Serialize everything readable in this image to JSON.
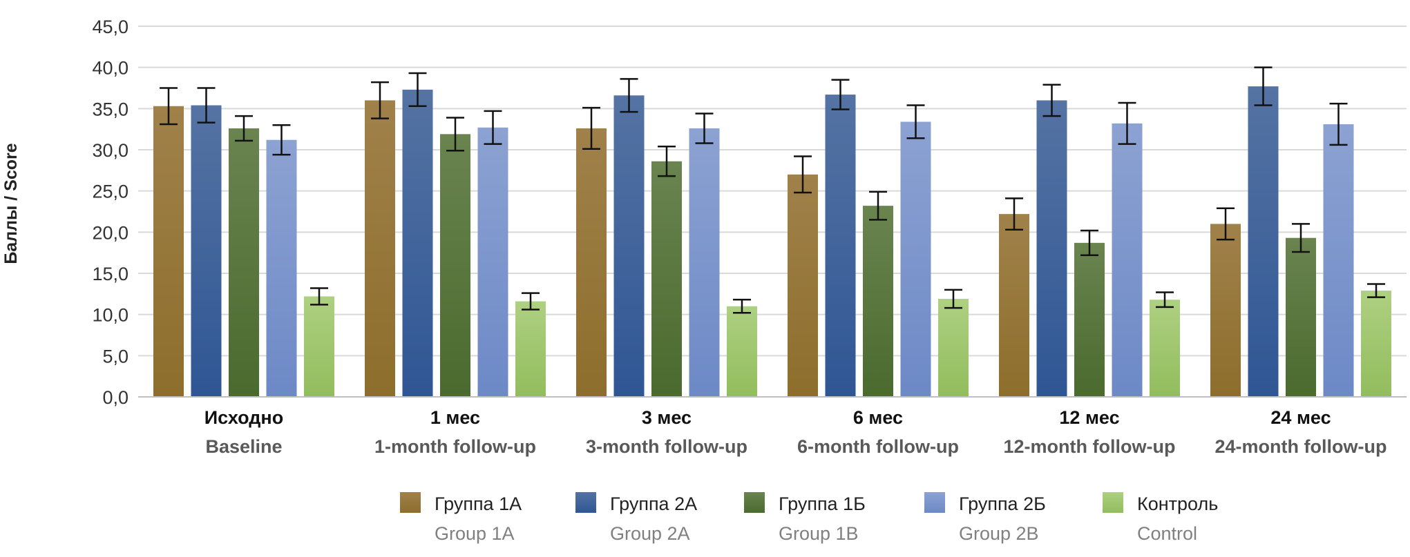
{
  "chart_data": {
    "type": "bar",
    "title": "",
    "ylabel": "Баллы / Score",
    "ylim": [
      0,
      45
    ],
    "ytick_labels": [
      "0,0",
      "5,0",
      "10,0",
      "15,0",
      "20,0",
      "25,0",
      "30,0",
      "35,0",
      "40,0",
      "45,0"
    ],
    "grid": true,
    "legend_position": "bottom",
    "categories": [
      {
        "ru": "Исходно",
        "en": "Baseline"
      },
      {
        "ru": "1 мес",
        "en": "1-month follow-up"
      },
      {
        "ru": "3 мес",
        "en": "3-month follow-up"
      },
      {
        "ru": "6 мес",
        "en": "6-month follow-up"
      },
      {
        "ru": "12 мес",
        "en": "12-month follow-up"
      },
      {
        "ru": "24 мес",
        "en": "24-month follow-up"
      }
    ],
    "series": [
      {
        "name": "Группа 1А",
        "name_en": "Group 1A",
        "color": "#8d6e2c",
        "color_light": "#a0814a",
        "values": [
          35.3,
          36.0,
          32.6,
          27.0,
          22.2,
          21.0
        ],
        "errors": [
          2.2,
          2.2,
          2.5,
          2.2,
          1.9,
          1.9
        ]
      },
      {
        "name": "Группа 2А",
        "name_en": "Group 2A",
        "color": "#2f5694",
        "color_light": "#5573a3",
        "values": [
          35.4,
          37.3,
          36.6,
          36.7,
          36.0,
          37.7
        ],
        "errors": [
          2.1,
          2.0,
          2.0,
          1.8,
          1.9,
          2.3
        ]
      },
      {
        "name": "Группа 1Б",
        "name_en": "Group 1B",
        "color": "#4a6a2e",
        "color_light": "#6a8450",
        "values": [
          32.6,
          31.9,
          28.6,
          23.2,
          18.7,
          19.3
        ],
        "errors": [
          1.5,
          2.0,
          1.8,
          1.7,
          1.5,
          1.7
        ]
      },
      {
        "name": "Группа 2Б",
        "name_en": "Group 2B",
        "color": "#6d89c6",
        "color_light": "#8ca2d2",
        "values": [
          31.2,
          32.7,
          32.6,
          33.4,
          33.2,
          33.1
        ],
        "errors": [
          1.8,
          2.0,
          1.8,
          2.0,
          2.5,
          2.5
        ]
      },
      {
        "name": "Контроль",
        "name_en": "Control",
        "color": "#92bd5d",
        "color_light": "#aed082",
        "values": [
          12.2,
          11.6,
          11.0,
          11.9,
          11.8,
          12.9
        ],
        "errors": [
          1.0,
          1.0,
          0.8,
          1.1,
          0.9,
          0.8
        ]
      }
    ]
  }
}
